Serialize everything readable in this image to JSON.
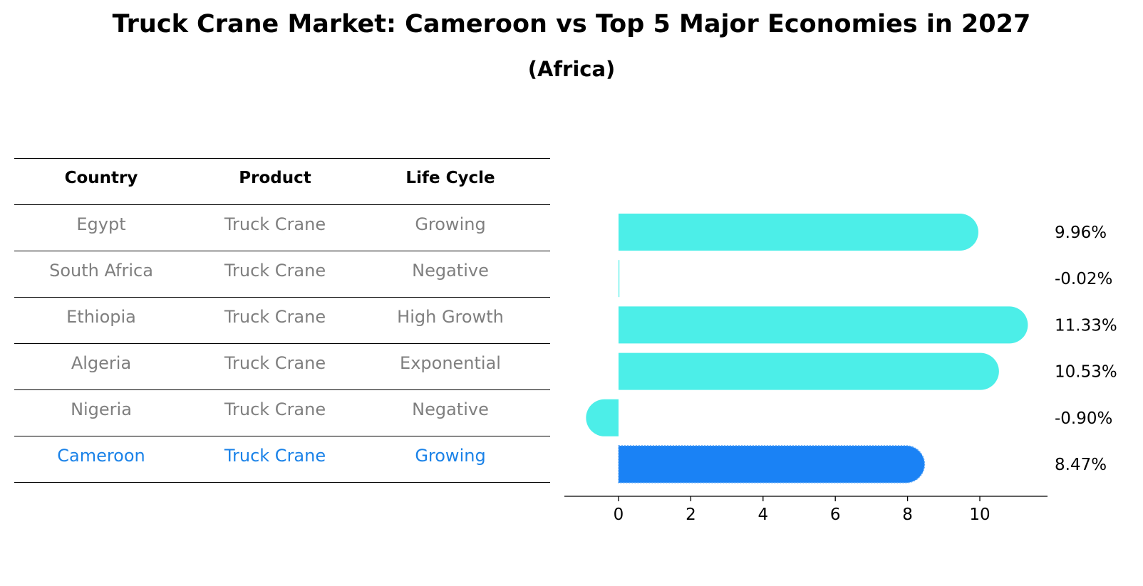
{
  "header": {
    "title": "Truck Crane Market: Cameroon vs Top 5 Major Economies in 2027",
    "subtitle": "(Africa)"
  },
  "table": {
    "columns": [
      "Country",
      "Product",
      "Life Cycle"
    ],
    "rows": [
      [
        "Egypt",
        "Truck Crane",
        "Growing"
      ],
      [
        "South Africa",
        "Truck Crane",
        "Negative"
      ],
      [
        "Ethiopia",
        "Truck Crane",
        "High Growth"
      ],
      [
        "Algeria",
        "Truck Crane",
        "Exponential"
      ],
      [
        "Nigeria",
        "Truck Crane",
        "Negative"
      ],
      [
        "Cameroon",
        "Truck Crane",
        "Growing"
      ]
    ],
    "highlight_row": 5
  },
  "colors": {
    "bar": "#4ceee8",
    "highlight": "#1a82f5",
    "text_muted": "#7f7f7f",
    "text_highlight": "#1a82e8"
  },
  "chart_data": {
    "type": "bar",
    "orientation": "horizontal",
    "categories": [
      "Egypt",
      "South Africa",
      "Ethiopia",
      "Algeria",
      "Nigeria",
      "Cameroon"
    ],
    "values": [
      9.96,
      -0.02,
      11.33,
      10.53,
      -0.9,
      8.47
    ],
    "value_labels": [
      "9.96%",
      "-0.02%",
      "11.33%",
      "10.53%",
      "-0.90%",
      "8.47%"
    ],
    "highlight": "Cameroon",
    "xticks": [
      0,
      2,
      4,
      6,
      8,
      10
    ],
    "xlim": [
      -1.5,
      12
    ],
    "xlabel": "",
    "ylabel": "",
    "grid": false
  }
}
